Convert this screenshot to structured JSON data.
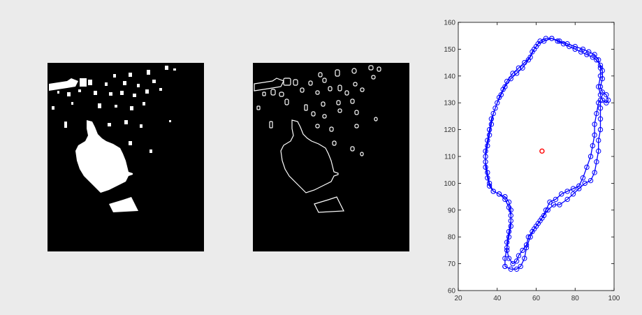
{
  "colors": {
    "figure_background": "#ebebeb",
    "image_background": "#000000",
    "image_foreground": "#ffffff",
    "plot_background": "#ffffff",
    "boundary": "#0000ff",
    "centroid": "#ff0000"
  },
  "chart_data": [
    {
      "type": "image",
      "description_key": "binary-mask",
      "shown_as": "filled white blobs on black"
    },
    {
      "type": "image",
      "description_key": "edge-map",
      "shown_as": "white outlines on black"
    },
    {
      "type": "line",
      "title": "",
      "xlabel": "",
      "ylabel": "",
      "xlim": [
        20,
        100
      ],
      "ylim": [
        60,
        160
      ],
      "xticks": [
        20,
        40,
        60,
        80,
        100
      ],
      "yticks": [
        60,
        70,
        80,
        90,
        100,
        110,
        120,
        130,
        140,
        150,
        160
      ],
      "grid": false,
      "legend": "none",
      "series": [
        {
          "marker": "circle",
          "color": "#0000ff",
          "points": [
            [
              44,
              69
            ],
            [
              47,
              68
            ],
            [
              50,
              68
            ],
            [
              52,
              69
            ],
            [
              54,
              72
            ],
            [
              55,
              76
            ],
            [
              57,
              80
            ],
            [
              59,
              83
            ],
            [
              61,
              85
            ],
            [
              63,
              87
            ],
            [
              65,
              90
            ],
            [
              67,
              93
            ],
            [
              70,
              94
            ],
            [
              73,
              96
            ],
            [
              76,
              97
            ],
            [
              79,
              98
            ],
            [
              82,
              99
            ],
            [
              84,
              102
            ],
            [
              86,
              106
            ],
            [
              88,
              110
            ],
            [
              89,
              114
            ],
            [
              90,
              118
            ],
            [
              90,
              122
            ],
            [
              91,
              126
            ],
            [
              92,
              130
            ],
            [
              93,
              131
            ],
            [
              93,
              128
            ],
            [
              93,
              124
            ],
            [
              93,
              120
            ],
            [
              92,
              116
            ],
            [
              92,
              112
            ],
            [
              91,
              108
            ],
            [
              90,
              104
            ],
            [
              88,
              101
            ],
            [
              85,
              100
            ],
            [
              82,
              98
            ],
            [
              79,
              96
            ],
            [
              76,
              94
            ],
            [
              72,
              92
            ],
            [
              69,
              92
            ],
            [
              66,
              90
            ],
            [
              64,
              88
            ],
            [
              62,
              86
            ],
            [
              60,
              84
            ],
            [
              58,
              82
            ],
            [
              56,
              80
            ],
            [
              55,
              77
            ],
            [
              53,
              75
            ],
            [
              51,
              73
            ],
            [
              50,
              71
            ],
            [
              48,
              70
            ],
            [
              46,
              72
            ],
            [
              45,
              75
            ],
            [
              45,
              78
            ],
            [
              46,
              82
            ],
            [
              47,
              86
            ],
            [
              47,
              90
            ],
            [
              46,
              93
            ],
            [
              44,
              95
            ],
            [
              41,
              96
            ],
            [
              38,
              97
            ],
            [
              36,
              99
            ],
            [
              35,
              102
            ],
            [
              34,
              106
            ],
            [
              34,
              110
            ],
            [
              35,
              114
            ],
            [
              36,
              118
            ],
            [
              37,
              122
            ],
            [
              38,
              126
            ],
            [
              40,
              130
            ],
            [
              42,
              133
            ],
            [
              44,
              136
            ],
            [
              47,
              139
            ],
            [
              50,
              141
            ],
            [
              53,
              143
            ],
            [
              56,
              146
            ],
            [
              58,
              149
            ],
            [
              60,
              151
            ],
            [
              62,
              153
            ],
            [
              65,
              154
            ],
            [
              68,
              154
            ],
            [
              71,
              153
            ],
            [
              74,
              152
            ],
            [
              77,
              151
            ],
            [
              80,
              150
            ],
            [
              83,
              149
            ],
            [
              86,
              148
            ],
            [
              89,
              147
            ],
            [
              91,
              146
            ],
            [
              93,
              144
            ],
            [
              94,
              142
            ],
            [
              94,
              139
            ],
            [
              93,
              136
            ],
            [
              94,
              134
            ],
            [
              96,
              133
            ],
            [
              97,
              131
            ],
            [
              96,
              130
            ],
            [
              94,
              131
            ],
            [
              93,
              133
            ],
            [
              92,
              136
            ],
            [
              93,
              140
            ],
            [
              93,
              143
            ],
            [
              92,
              146
            ],
            [
              90,
              148
            ],
            [
              87,
              149
            ],
            [
              84,
              150
            ],
            [
              80,
              151
            ],
            [
              76,
              152
            ],
            [
              72,
              153
            ],
            [
              68,
              154
            ],
            [
              64,
              153
            ],
            [
              61,
              152
            ],
            [
              59,
              150
            ],
            [
              57,
              147
            ],
            [
              54,
              145
            ],
            [
              51,
              143
            ],
            [
              48,
              141
            ],
            [
              45,
              138
            ],
            [
              43,
              135
            ],
            [
              41,
              132
            ],
            [
              39,
              128
            ],
            [
              37,
              124
            ],
            [
              36,
              120
            ],
            [
              35,
              116
            ],
            [
              34,
              112
            ],
            [
              34,
              108
            ],
            [
              35,
              104
            ],
            [
              36,
              100
            ],
            [
              38,
              97
            ],
            [
              41,
              96
            ],
            [
              44,
              94
            ],
            [
              46,
              91
            ],
            [
              47,
              88
            ],
            [
              47,
              84
            ],
            [
              46,
              80
            ],
            [
              45,
              76
            ],
            [
              44,
              72
            ],
            [
              44,
              69
            ]
          ]
        },
        {
          "marker": "circle",
          "color": "#ff0000",
          "points": [
            [
              63,
              112
            ]
          ]
        }
      ]
    }
  ]
}
